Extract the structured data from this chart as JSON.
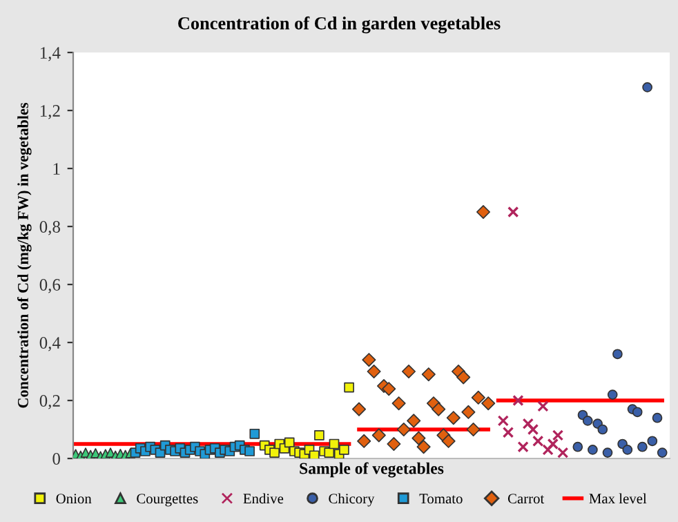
{
  "chart_data": {
    "type": "scatter",
    "title": "Concentration of Cd in garden vegetables",
    "xlabel": "Sample of vegetables",
    "ylabel": "Concentration of Cd (mg/kg FW) in vegetables",
    "categories": [
      null,
      null,
      null,
      null,
      null,
      null,
      null,
      null,
      null,
      null,
      null,
      null,
      null,
      null,
      null,
      null,
      null,
      null,
      null,
      null,
      null,
      null,
      null,
      null,
      null,
      null,
      null,
      null,
      null,
      null,
      null,
      null,
      null,
      null,
      null,
      null,
      null,
      null,
      null,
      null,
      null,
      null,
      null,
      null,
      null,
      null,
      null,
      null,
      null,
      null,
      null,
      null,
      null,
      null,
      null,
      null,
      null,
      null,
      null,
      null,
      null,
      null,
      null,
      null,
      null,
      null,
      null,
      null,
      null,
      null,
      null,
      null,
      null,
      null,
      null,
      null,
      null,
      null,
      null,
      null,
      null,
      null,
      null,
      null,
      null,
      null,
      null,
      null,
      null,
      null,
      null,
      null,
      null,
      null,
      null,
      null,
      null,
      null,
      null,
      null,
      null,
      null,
      null,
      null,
      null,
      null,
      null,
      null,
      null,
      null,
      null,
      null,
      null,
      null,
      null,
      null,
      null,
      null,
      null,
      null
    ],
    "ylim": [
      0,
      1.4
    ],
    "yticks": [
      0,
      {
        "value": 0.2,
        "label": "0,2"
      },
      {
        "value": 0.4,
        "label": "0,4"
      },
      {
        "value": 0.6,
        "label": "0,6"
      },
      {
        "value": 0.8,
        "label": "0,8"
      },
      1,
      {
        "value": 1.2,
        "label": "1,2"
      },
      {
        "value": 1.4,
        "label": "1,4"
      }
    ],
    "tick_labels": "y",
    "grid": false,
    "legend": "bottom",
    "series": [
      {
        "name": "Onion",
        "marker": "square",
        "color": "#f2f20a",
        "values": [
          null,
          null,
          null,
          null,
          null,
          null,
          null,
          null,
          null,
          null,
          null,
          null,
          null,
          null,
          null,
          null,
          null,
          null,
          null,
          null,
          null,
          null,
          null,
          null,
          null,
          null,
          null,
          null,
          null,
          null,
          null,
          null,
          null,
          null,
          null,
          null,
          null,
          null,
          0.045,
          0.03,
          0.02,
          0.05,
          0.035,
          0.055,
          0.025,
          0.02,
          0.015,
          0.03,
          0.01,
          0.08,
          0.025,
          0.02,
          0.05,
          0.015,
          0.03,
          0.245,
          null,
          null,
          null,
          null,
          null,
          null,
          null,
          null,
          null,
          null,
          null,
          null,
          null,
          null,
          null,
          null,
          null,
          null,
          null,
          null,
          null,
          null,
          null,
          null,
          null,
          null,
          null,
          null,
          null,
          null,
          null,
          null,
          null,
          null,
          null,
          null,
          null,
          null,
          null,
          null,
          null,
          null,
          null,
          null,
          null,
          null,
          null,
          null,
          null,
          null,
          null,
          null,
          null,
          null,
          null,
          null,
          null,
          null,
          null,
          null,
          null,
          null,
          null,
          null
        ]
      },
      {
        "name": "Courgettes",
        "marker": "triangle",
        "color": "#3cc878",
        "values": [
          0.015,
          0.01,
          0.02,
          0.012,
          0.018,
          0.008,
          0.015,
          0.02,
          0.01,
          0.016,
          0.012,
          0.018,
          null,
          null,
          null,
          null,
          null,
          null,
          null,
          null,
          null,
          null,
          null,
          null,
          null,
          null,
          null,
          null,
          null,
          null,
          null,
          null,
          null,
          null,
          null,
          null,
          null,
          null,
          null,
          null,
          null,
          null,
          null,
          null,
          null,
          null,
          null,
          null,
          null,
          null,
          null,
          null,
          null,
          null,
          null,
          null,
          null,
          null,
          null,
          null,
          null,
          null,
          null,
          null,
          null,
          null,
          null,
          null,
          null,
          null,
          null,
          null,
          null,
          null,
          null,
          null,
          null,
          null,
          null,
          null,
          null,
          null,
          null,
          null,
          null,
          null,
          null,
          null,
          null,
          null,
          null,
          null,
          null,
          null,
          null,
          null,
          null,
          null,
          null,
          null,
          null,
          null,
          null,
          null,
          null,
          null,
          null,
          null,
          null,
          null,
          null,
          null,
          null,
          null,
          null,
          null,
          null,
          null,
          null,
          null
        ]
      },
      {
        "name": "Endive",
        "marker": "cross",
        "color": "#b0245c",
        "values": [
          null,
          null,
          null,
          null,
          null,
          null,
          null,
          null,
          null,
          null,
          null,
          null,
          null,
          null,
          null,
          null,
          null,
          null,
          null,
          null,
          null,
          null,
          null,
          null,
          null,
          null,
          null,
          null,
          null,
          null,
          null,
          null,
          null,
          null,
          null,
          null,
          null,
          null,
          null,
          null,
          null,
          null,
          null,
          null,
          null,
          null,
          null,
          null,
          null,
          null,
          null,
          null,
          null,
          null,
          null,
          null,
          null,
          null,
          null,
          null,
          null,
          null,
          null,
          null,
          null,
          null,
          null,
          null,
          null,
          null,
          null,
          null,
          null,
          null,
          null,
          null,
          null,
          null,
          null,
          null,
          null,
          null,
          null,
          null,
          null,
          null,
          0.13,
          0.09,
          0.85,
          0.2,
          0.04,
          0.12,
          0.1,
          0.06,
          0.18,
          0.03,
          0.05,
          0.08,
          0.02,
          null,
          null,
          null,
          null,
          null,
          null,
          null,
          null,
          null,
          null,
          null,
          null,
          null,
          null,
          null,
          null,
          null,
          null,
          null,
          null,
          null
        ]
      },
      {
        "name": "Chicory",
        "marker": "circle",
        "color": "#3a5fa8",
        "values": [
          null,
          null,
          null,
          null,
          null,
          null,
          null,
          null,
          null,
          null,
          null,
          null,
          null,
          null,
          null,
          null,
          null,
          null,
          null,
          null,
          null,
          null,
          null,
          null,
          null,
          null,
          null,
          null,
          null,
          null,
          null,
          null,
          null,
          null,
          null,
          null,
          null,
          null,
          null,
          null,
          null,
          null,
          null,
          null,
          null,
          null,
          null,
          null,
          null,
          null,
          null,
          null,
          null,
          null,
          null,
          null,
          null,
          null,
          null,
          null,
          null,
          null,
          null,
          null,
          null,
          null,
          null,
          null,
          null,
          null,
          null,
          null,
          null,
          null,
          null,
          null,
          null,
          null,
          null,
          null,
          null,
          null,
          null,
          null,
          null,
          null,
          null,
          null,
          null,
          null,
          null,
          null,
          null,
          null,
          null,
          null,
          null,
          null,
          null,
          null,
          null,
          0.04,
          0.15,
          0.13,
          0.03,
          0.12,
          0.1,
          0.02,
          0.22,
          0.36,
          0.05,
          0.03,
          0.17,
          0.16,
          0.04,
          1.28,
          0.06,
          0.14,
          0.02,
          null
        ]
      },
      {
        "name": "Tomato",
        "marker": "square",
        "color": "#1f9ad6",
        "values": [
          null,
          null,
          null,
          null,
          null,
          null,
          null,
          null,
          null,
          null,
          null,
          null,
          0.02,
          0.035,
          0.025,
          0.04,
          0.03,
          0.02,
          0.045,
          0.03,
          0.025,
          0.035,
          0.02,
          0.03,
          0.04,
          0.025,
          0.015,
          0.03,
          0.035,
          0.02,
          0.03,
          0.025,
          0.04,
          0.045,
          0.03,
          0.025,
          0.085,
          null,
          null,
          null,
          null,
          null,
          null,
          null,
          null,
          null,
          null,
          null,
          null,
          null,
          null,
          null,
          null,
          null,
          null,
          null,
          null,
          null,
          null,
          null,
          null,
          null,
          null,
          null,
          null,
          null,
          null,
          null,
          null,
          null,
          null,
          null,
          null,
          null,
          null,
          null,
          null,
          null,
          null,
          null,
          null,
          null,
          null,
          null,
          null,
          null,
          null,
          null,
          null,
          null,
          null,
          null,
          null,
          null,
          null,
          null,
          null,
          null,
          null,
          null,
          null,
          null,
          null,
          null,
          null,
          null,
          null,
          null,
          null,
          null,
          null,
          null,
          null,
          null,
          null,
          null,
          null,
          null,
          null,
          null
        ]
      },
      {
        "name": "Carrot",
        "marker": "diamond",
        "color": "#e0600f",
        "values": [
          null,
          null,
          null,
          null,
          null,
          null,
          null,
          null,
          null,
          null,
          null,
          null,
          null,
          null,
          null,
          null,
          null,
          null,
          null,
          null,
          null,
          null,
          null,
          null,
          null,
          null,
          null,
          null,
          null,
          null,
          null,
          null,
          null,
          null,
          null,
          null,
          null,
          null,
          null,
          null,
          null,
          null,
          null,
          null,
          null,
          null,
          null,
          null,
          null,
          null,
          null,
          null,
          null,
          null,
          null,
          null,
          null,
          0.17,
          0.06,
          0.34,
          0.3,
          0.08,
          0.25,
          0.24,
          0.05,
          0.19,
          0.1,
          0.3,
          0.13,
          0.07,
          0.04,
          0.29,
          0.19,
          0.17,
          0.08,
          0.06,
          0.14,
          0.3,
          0.28,
          0.16,
          0.1,
          0.21,
          0.85,
          0.19,
          null,
          null,
          null,
          null,
          null,
          null,
          null,
          null,
          null,
          null,
          null,
          null,
          null,
          null,
          null,
          null,
          null,
          null,
          null,
          null,
          null,
          null,
          null,
          null,
          null,
          null,
          null,
          null,
          null,
          null,
          null,
          null,
          null,
          null,
          null,
          null
        ]
      },
      {
        "name": "Max level",
        "type": "line",
        "marker": "none",
        "line_style": "solid",
        "color": "#ff0000",
        "values": [
          0.05,
          0.05,
          0.05,
          0.05,
          0.05,
          0.05,
          0.05,
          0.05,
          0.05,
          0.05,
          0.05,
          0.05,
          0.05,
          0.05,
          0.05,
          0.05,
          0.05,
          0.05,
          0.05,
          0.05,
          0.05,
          0.05,
          0.05,
          0.05,
          0.05,
          0.05,
          0.05,
          0.05,
          0.05,
          0.05,
          0.05,
          0.05,
          0.05,
          0.05,
          0.05,
          0.05,
          0.05,
          0.05,
          0.05,
          0.05,
          0.05,
          0.05,
          0.05,
          0.05,
          0.05,
          0.05,
          0.05,
          0.05,
          0.05,
          0.05,
          0.05,
          0.05,
          0.05,
          0.05,
          0.05,
          0.05,
          null,
          0.1,
          0.1,
          0.1,
          0.1,
          0.1,
          0.1,
          0.1,
          0.1,
          0.1,
          0.1,
          0.1,
          0.1,
          0.1,
          0.1,
          0.1,
          0.1,
          0.1,
          0.1,
          0.1,
          0.1,
          0.1,
          0.1,
          0.1,
          0.1,
          0.1,
          0.1,
          0.1,
          null,
          0.2,
          0.2,
          0.2,
          0.2,
          0.2,
          0.2,
          0.2,
          0.2,
          0.2,
          0.2,
          0.2,
          0.2,
          0.2,
          0.2,
          0.2,
          0.2,
          0.2,
          0.2,
          0.2,
          0.2,
          0.2,
          0.2,
          0.2,
          0.2,
          0.2,
          0.2,
          0.2,
          0.2,
          0.2,
          0.2,
          0.2,
          0.2,
          0.2,
          0.2,
          null
        ]
      }
    ]
  }
}
